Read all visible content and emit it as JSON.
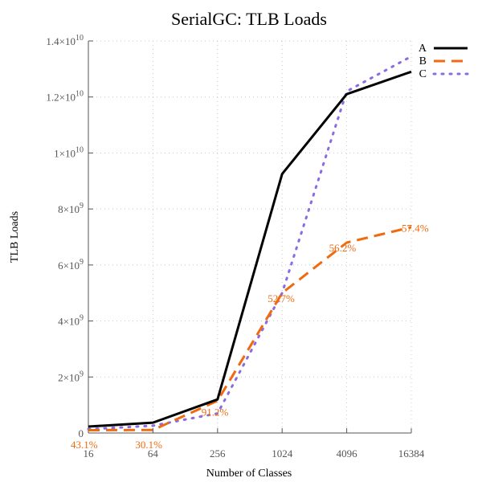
{
  "chart_data": {
    "type": "line",
    "title": "SerialGC: TLB Loads",
    "xlabel": "Number of Classes",
    "ylabel": "TLB Loads",
    "x_scale": "log",
    "x": [
      16,
      64,
      256,
      1024,
      4096,
      16384
    ],
    "x_tick_labels": [
      "16",
      "64",
      "256",
      "1024",
      "4096",
      "16384"
    ],
    "ylim": [
      0,
      14000000000
    ],
    "y_ticks": [
      {
        "base": "0",
        "exp": ""
      },
      {
        "base": "2×10",
        "exp": "9"
      },
      {
        "base": "4×10",
        "exp": "9"
      },
      {
        "base": "6×10",
        "exp": "9"
      },
      {
        "base": "8×10",
        "exp": "9"
      },
      {
        "base": "1×10",
        "exp": "10"
      },
      {
        "base": "1.2×10",
        "exp": "10"
      },
      {
        "base": "1.4×10",
        "exp": "10"
      }
    ],
    "grid": true,
    "legend_position": "top-right",
    "series": [
      {
        "name": "A",
        "color": "#000000",
        "style": "solid",
        "values": [
          230000000,
          370000000,
          1200000000,
          9250000000,
          12100000000,
          12900000000
        ]
      },
      {
        "name": "B",
        "color": "#f06a10",
        "style": "dashed",
        "values": [
          100000000,
          110000000,
          1150000000,
          5000000000,
          6800000000,
          7350000000
        ]
      },
      {
        "name": "C",
        "color": "#8a6ce0",
        "style": "dotted",
        "values": [
          135000000,
          260000000,
          700000000,
          5000000000,
          12200000000,
          13450000000
        ]
      }
    ],
    "annotations": [
      {
        "text": "43.1%",
        "x": 16,
        "y": -300000000,
        "color": "#f06a10"
      },
      {
        "text": "30.1%",
        "x": 64,
        "y": -300000000,
        "color": "#f06a10"
      },
      {
        "text": "91.2%",
        "x": 256,
        "y": 450000000,
        "color": "#f06a10"
      },
      {
        "text": "52.7%",
        "x": 1024,
        "y": 4500000000,
        "color": "#f06a10"
      },
      {
        "text": "56.2%",
        "x": 4096,
        "y": 6250000000,
        "color": "#f06a10"
      },
      {
        "text": "57.4%",
        "x": 16384,
        "y": 6950000000,
        "color": "#f06a10"
      }
    ]
  }
}
